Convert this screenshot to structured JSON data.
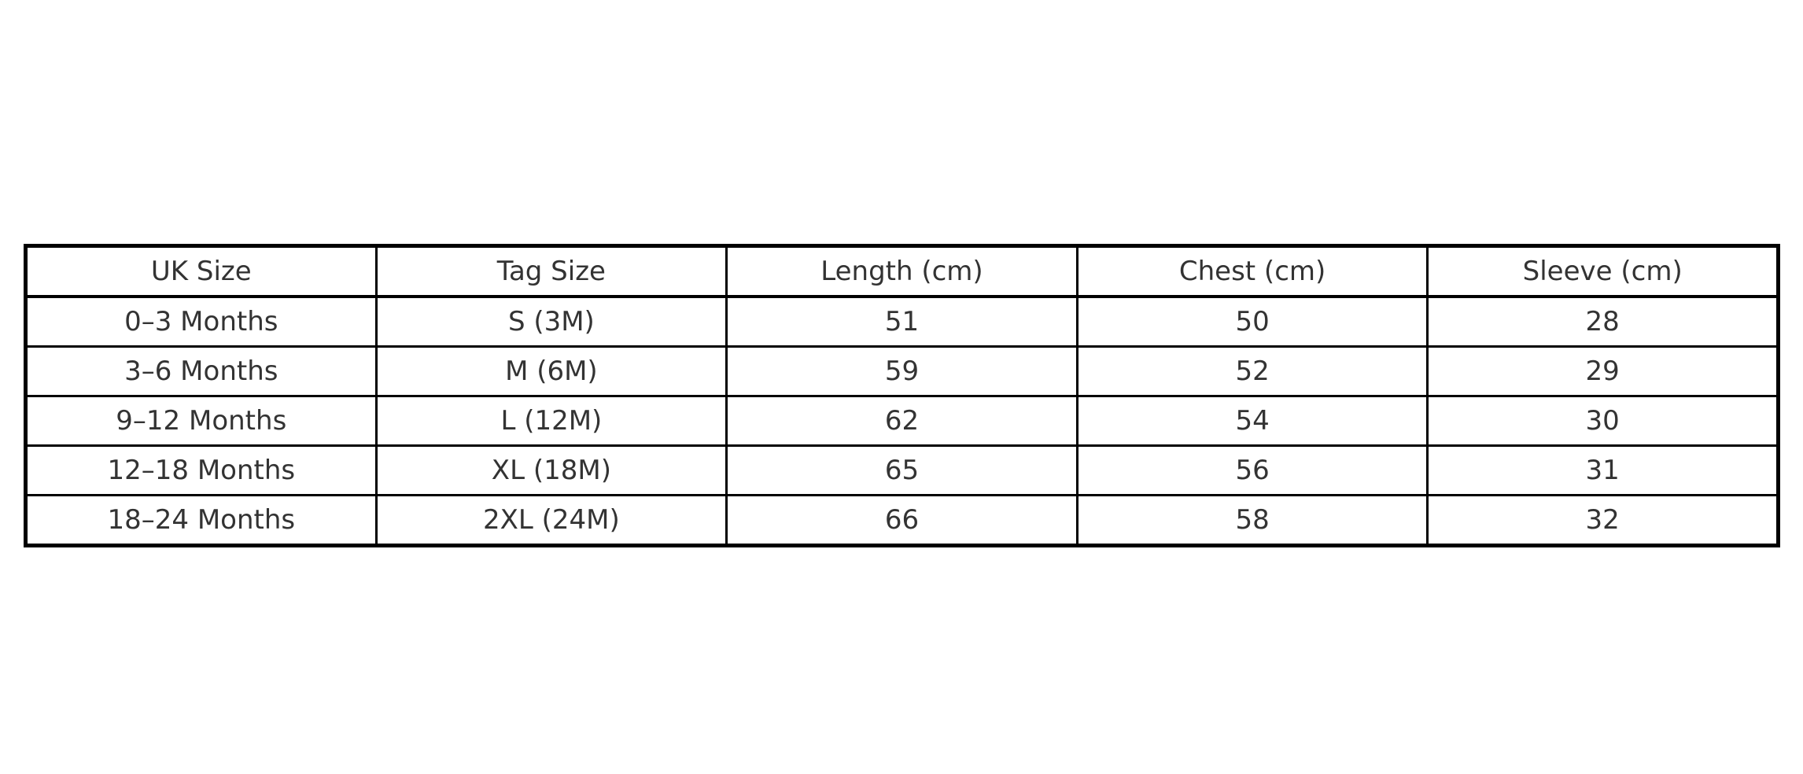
{
  "colors": {
    "background": "#ffffff",
    "border": "#000000",
    "text": "#333333"
  },
  "chart_data": {
    "type": "table",
    "title": "",
    "columns": [
      "UK Size",
      "Tag Size",
      "Length (cm)",
      "Chest (cm)",
      "Sleeve (cm)"
    ],
    "rows": [
      [
        "0–3 Months",
        "S (3M)",
        "51",
        "50",
        "28"
      ],
      [
        "3–6 Months",
        "M (6M)",
        "59",
        "52",
        "29"
      ],
      [
        "9–12 Months",
        "L (12M)",
        "62",
        "54",
        "30"
      ],
      [
        "12–18 Months",
        "XL (18M)",
        "65",
        "56",
        "31"
      ],
      [
        "18–24 Months",
        "2XL (24M)",
        "66",
        "58",
        "32"
      ]
    ],
    "layout_hints": {
      "grid": "all-borders",
      "alignment": "center",
      "header_style": "same-weight-as-body"
    }
  }
}
